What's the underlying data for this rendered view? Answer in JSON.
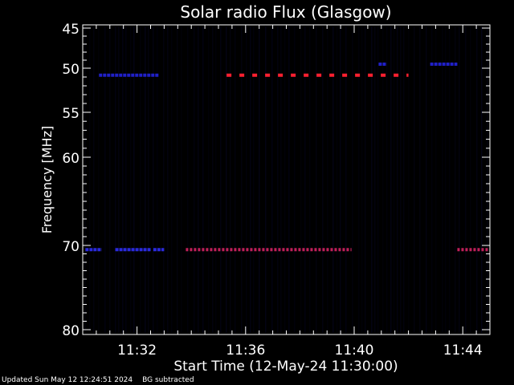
{
  "chart_data": {
    "type": "heatmap",
    "title": "Solar radio Flux (Glasgow)",
    "xlabel": "Start Time (12-May-24 11:30:00)",
    "ylabel": "Frequency [MHz]",
    "x_unit": "minutes after 11:30:00",
    "xlim": [
      0,
      15
    ],
    "ylim": [
      45,
      80
    ],
    "y_scale": "nonlinear (log-like, increasing downward)",
    "x_ticks": [
      {
        "value": 2,
        "label": "11:32"
      },
      {
        "value": 6,
        "label": "11:36"
      },
      {
        "value": 10,
        "label": "11:40"
      },
      {
        "value": 14,
        "label": "11:44"
      }
    ],
    "y_ticks": [
      {
        "value": 45,
        "label": "45"
      },
      {
        "value": 50,
        "label": "50"
      },
      {
        "value": 55,
        "label": "55"
      },
      {
        "value": 60,
        "label": "60"
      },
      {
        "value": 70,
        "label": "70"
      },
      {
        "value": 80,
        "label": "80"
      }
    ],
    "bands": [
      {
        "freq": 50.8,
        "start": 5.3,
        "end": 12.0,
        "level": "high",
        "color": "#ff2030"
      },
      {
        "freq": 50.8,
        "start": 0.6,
        "end": 2.8,
        "level": "low",
        "color": "#2020c8"
      },
      {
        "freq": 70.5,
        "start": 0.1,
        "end": 0.7,
        "level": "low",
        "color": "#2a2adc"
      },
      {
        "freq": 70.5,
        "start": 1.2,
        "end": 2.5,
        "level": "low",
        "color": "#2a2adc"
      },
      {
        "freq": 70.5,
        "start": 2.6,
        "end": 3.0,
        "level": "low",
        "color": "#2a2adc"
      },
      {
        "freq": 70.5,
        "start": 3.8,
        "end": 9.9,
        "level": "medium",
        "color": "#c0205a"
      },
      {
        "freq": 70.5,
        "start": 13.8,
        "end": 15.0,
        "level": "medium",
        "color": "#c0205a"
      },
      {
        "freq": 49.5,
        "start": 10.9,
        "end": 11.2,
        "level": "low",
        "color": "#2020c8"
      },
      {
        "freq": 49.5,
        "start": 12.8,
        "end": 13.8,
        "level": "low",
        "color": "#2020c8"
      }
    ],
    "colors": {
      "background": "#000000",
      "axes": "#ffffff",
      "noise": "#06062a"
    }
  },
  "footer": {
    "updated": "Updated Sun May 12 12:24:51 2024",
    "note": "BG subtracted"
  }
}
